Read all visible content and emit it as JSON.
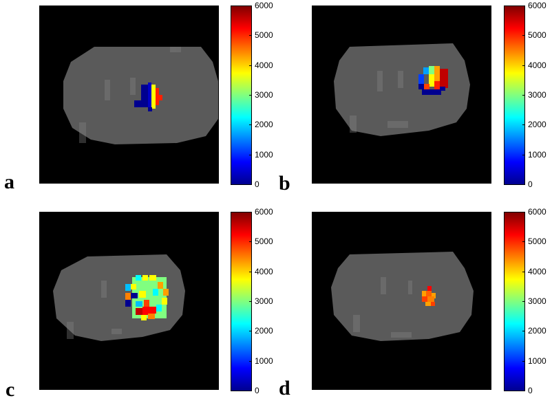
{
  "panels": [
    {
      "letter": "a",
      "ticks": [
        "6000",
        "5000",
        "4000",
        "3000",
        "2000",
        "1000",
        "0"
      ]
    },
    {
      "letter": "b",
      "ticks": [
        "6000",
        "5000",
        "4000",
        "3000",
        "2000",
        "1000",
        "0"
      ]
    },
    {
      "letter": "c",
      "ticks": [
        "6000",
        "5000",
        "4000",
        "3000",
        "2000",
        "1000",
        "0"
      ]
    },
    {
      "letter": "d",
      "ticks": [
        "6000",
        "5000",
        "4000",
        "3000",
        "2000",
        "1000",
        "0"
      ]
    }
  ],
  "colormap": {
    "min": 0,
    "max": 6000,
    "name": "jet"
  },
  "colors": {
    "background": "#000000",
    "tissue": "#5a5a5a"
  }
}
